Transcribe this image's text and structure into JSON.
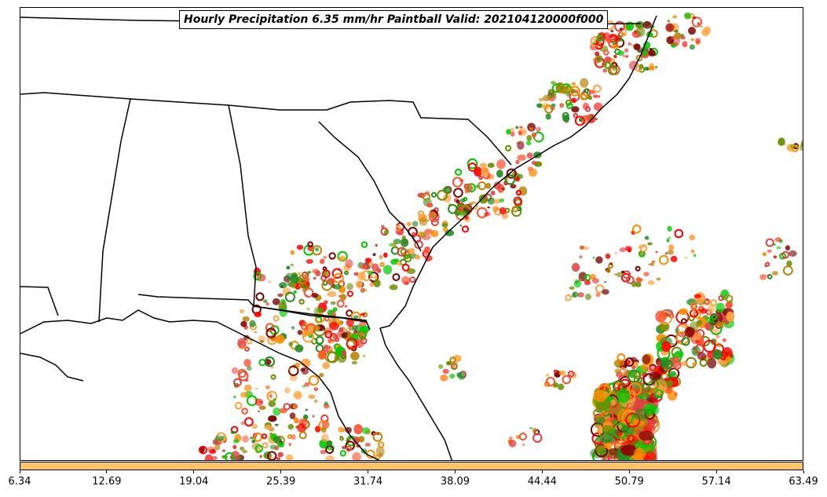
{
  "title": "Hourly Precipitation 6.35 mm/hr Paintball Valid: 202104120000f000",
  "colorbar": {
    "ticks": [
      "6.34",
      "12.69",
      "19.04",
      "25.39",
      "31.74",
      "38.09",
      "44.44",
      "50.79",
      "57.14",
      "63.49"
    ],
    "color": "#ffc36a"
  },
  "colors": {
    "member_palette": [
      "#ff0000",
      "#ff8c00",
      "#7a0000",
      "#00c800",
      "#6b8e00",
      "#e04040",
      "#ffa040",
      "#228b22",
      "#b8860b",
      "#ff5030"
    ]
  }
}
